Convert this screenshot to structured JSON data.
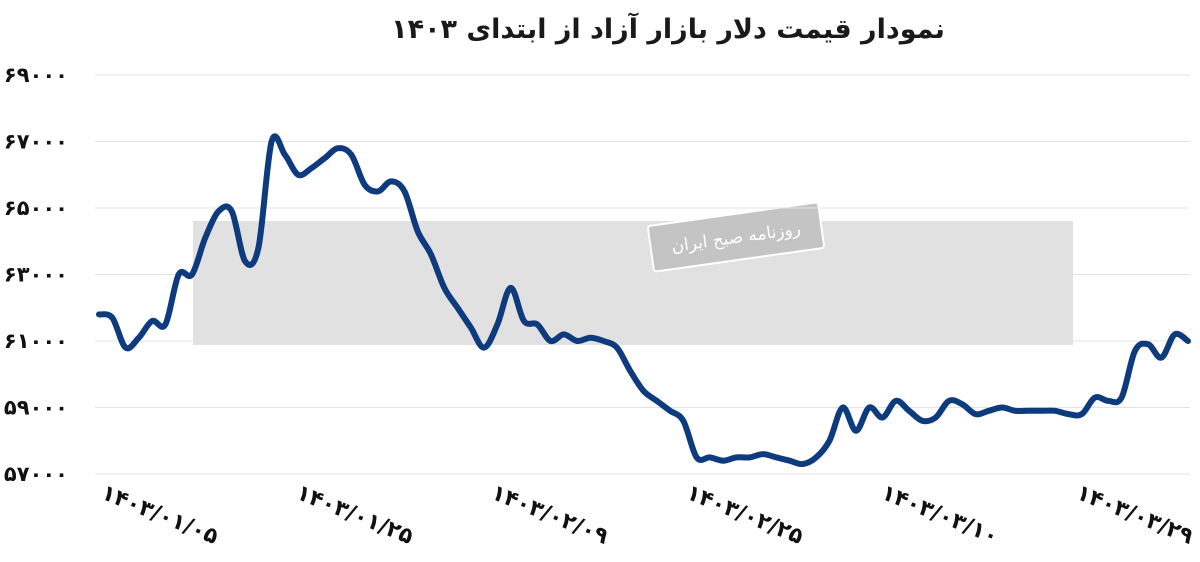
{
  "chart_data": {
    "type": "line",
    "title": "نمودار قیمت دلار بازار آزاد از ابتدای ۱۴۰۳",
    "y_ticks": [
      "۶۹۰۰۰",
      "۶۷۰۰۰",
      "۶۵۰۰۰",
      "۶۳۰۰۰",
      "۶۱۰۰۰",
      "۵۹۰۰۰",
      "۵۷۰۰۰"
    ],
    "y_tick_values": [
      69000,
      67000,
      65000,
      63000,
      61000,
      59000,
      57000
    ],
    "x_ticks": [
      "۱۴۰۳/۰۱/۰۵",
      "۱۴۰۳/۰۱/۲۵",
      "۱۴۰۳/۰۲/۰۹",
      "۱۴۰۳/۰۲/۲۵",
      "۱۴۰۳/۰۳/۱۰",
      "۱۴۰۳/۰۳/۲۹"
    ],
    "ylim": [
      57000,
      69000
    ],
    "grid": true,
    "line_color": "#0d3b7e",
    "series": [
      {
        "values": [
          61800,
          61700,
          60800,
          61100,
          61600,
          61500,
          63000,
          63000,
          64100,
          64900,
          64900,
          63400,
          63800,
          67000,
          66600,
          66000,
          66200,
          66500,
          66800,
          66600,
          65700,
          65500,
          65800,
          65500,
          64300,
          63600,
          62600,
          62000,
          61400,
          60800,
          61500,
          62600,
          61600,
          61500,
          61000,
          61200,
          61000,
          61100,
          61000,
          60800,
          60100,
          59500,
          59200,
          58900,
          58600,
          57500,
          57500,
          57400,
          57500,
          57500,
          57600,
          57500,
          57400,
          57300,
          57500,
          58000,
          59000,
          58300,
          59000,
          58700,
          59200,
          58900,
          58600,
          58700,
          59200,
          59100,
          58800,
          58900,
          59000,
          58900,
          58900,
          58900,
          58900,
          58800,
          58800,
          59300,
          59200,
          59300,
          60700,
          60900,
          60500,
          61200,
          61000
        ]
      }
    ],
    "watermark": "روزنامه صبح ایران"
  }
}
